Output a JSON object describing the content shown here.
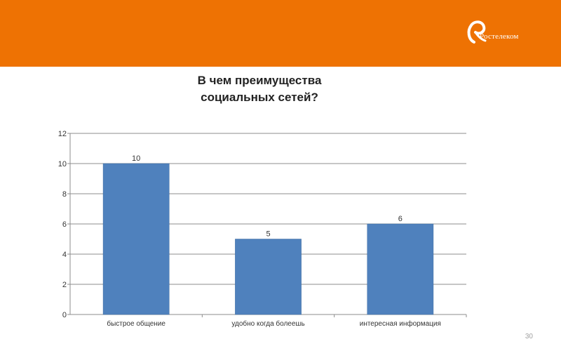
{
  "header": {
    "brand_color": "#ee7203",
    "logo_text": "Ростелеком",
    "logo_icon": "rostelecom-logo-icon"
  },
  "slide": {
    "title_line1": "В чем преимущества",
    "title_line2": "социальных сетей?",
    "page_number": "30"
  },
  "chart_data": {
    "type": "bar",
    "categories": [
      "быстрое общение",
      "удобно  когда болеешь",
      "интересная информация"
    ],
    "values": [
      10,
      5,
      6
    ],
    "data_labels": [
      "10",
      "5",
      "6"
    ],
    "ylim": [
      0,
      12
    ],
    "yticks": [
      "0",
      "2",
      "4",
      "6",
      "8",
      "10",
      "12"
    ],
    "grid": true,
    "legend": "none",
    "bar_color": "#4f81bd"
  }
}
